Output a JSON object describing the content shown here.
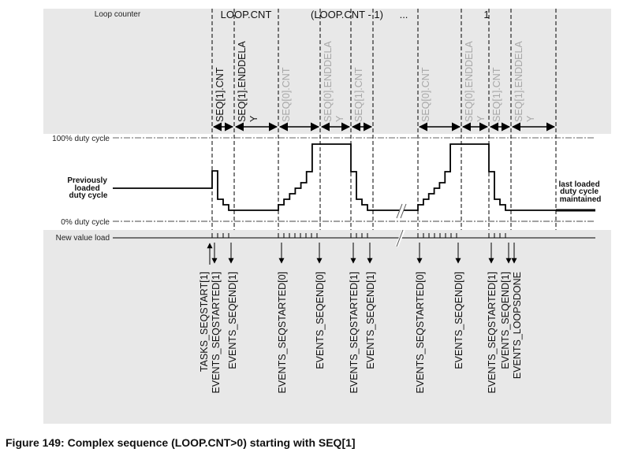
{
  "diagram": {
    "loop_counter_label": "Loop counter",
    "loop_labels": [
      "LOOP.CNT",
      "(LOOP.CNT - 1)",
      "...",
      "1"
    ],
    "duty_100_label": "100% duty cycle",
    "duty_0_label": "0% duty cycle",
    "previously_loaded": [
      "Previously",
      "loaded",
      "duty cycle"
    ],
    "last_loaded": [
      "last loaded",
      "duty cycle",
      "maintained"
    ],
    "new_value_load_label": "New value load",
    "phases": [
      {
        "line1": "SEQ[1].CNT",
        "line2": "",
        "active": true
      },
      {
        "line1": "SEQ[1].ENDDELA",
        "line2": "Y",
        "active": true
      },
      {
        "line1": "SEQ[0].CNT",
        "line2": "",
        "active": false
      },
      {
        "line1": "SEQ[0].ENDDELA",
        "line2": "Y",
        "active": false
      },
      {
        "line1": "SEQ[1].CNT",
        "line2": "",
        "active": false
      },
      {
        "line1": "SEQ[0].CNT",
        "line2": "",
        "active": false
      },
      {
        "line1": "SEQ[0].ENDDELA",
        "line2": "Y",
        "active": false
      },
      {
        "line1": "SEQ[1].CNT",
        "line2": "",
        "active": false
      },
      {
        "line1": "SEQ[1].ENDDELA",
        "line2": "Y",
        "active": false
      }
    ],
    "events": [
      {
        "label": "TASKS_SEQSTART[1]",
        "direction": "up"
      },
      {
        "label": "EVENTS_SEQSTARTED[1]",
        "direction": "down"
      },
      {
        "label": "EVENTS_SEQEND[1]",
        "direction": "down"
      },
      {
        "label": "EVENTS_SEQSTARTED[0]",
        "direction": "down"
      },
      {
        "label": "EVENTS_SEQEND[0]",
        "direction": "down"
      },
      {
        "label": "EVENTS_SEQSTARTED[1]",
        "direction": "down"
      },
      {
        "label": "EVENTS_SEQEND[1]",
        "direction": "down"
      },
      {
        "label": "EVENTS_SEQSTARTED[0]",
        "direction": "down"
      },
      {
        "label": "EVENTS_SEQEND[0]",
        "direction": "down"
      },
      {
        "label": "EVENTS_SEQSTARTED[1]",
        "direction": "down"
      },
      {
        "label": "EVENTS_SEQEND[1]",
        "direction": "down"
      },
      {
        "label": "EVENTS_LOOPSDONE",
        "direction": "down"
      }
    ],
    "colors": {
      "panel": "#e8e8e8",
      "active_text": "#111111",
      "inactive_text": "#a8a8a8"
    }
  },
  "caption": "Figure 149: Complex sequence (LOOP.CNT>0) starting with SEQ[1]"
}
